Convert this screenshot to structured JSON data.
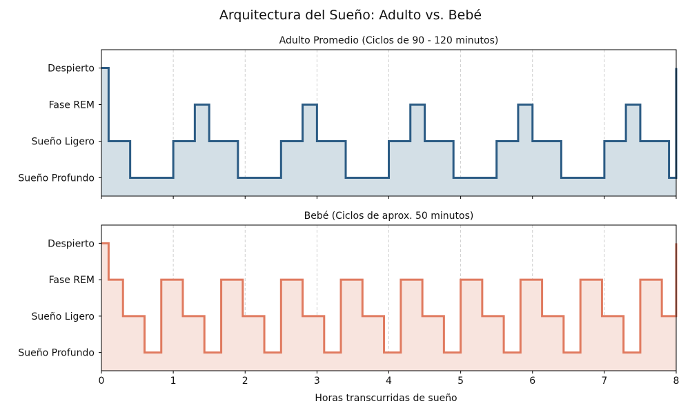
{
  "title": "Arquitectura del Sueño: Adulto vs. Bebé",
  "chart_data": [
    {
      "type": "line",
      "step": "post",
      "filled": true,
      "title": "Adulto Promedio (Ciclos de 90 - 120 minutos)",
      "xlabel": "",
      "ylabel": "",
      "xlim": [
        0,
        8
      ],
      "ylim": [
        -0.5,
        3.5
      ],
      "xticks": [
        0,
        1,
        2,
        3,
        4,
        5,
        6,
        7,
        8
      ],
      "show_xtick_labels": false,
      "yticks": [
        0,
        1,
        2,
        3
      ],
      "ytick_labels": [
        "Sueño Profundo",
        "Sueño Ligero",
        "Fase REM",
        "Despierto"
      ],
      "grid": "x dashed",
      "color": "#2b5b84",
      "fill_color": "#d3dfe6",
      "x": [
        0,
        0.1,
        0.4,
        1.0,
        1.3,
        1.5,
        1.9,
        2.5,
        2.8,
        3.0,
        3.4,
        4.0,
        4.3,
        4.5,
        4.9,
        5.5,
        5.8,
        6.0,
        6.4,
        7.0,
        7.3,
        7.5,
        7.9,
        8.0
      ],
      "y": [
        3,
        1,
        0,
        1,
        2,
        1,
        0,
        1,
        2,
        1,
        0,
        1,
        2,
        1,
        0,
        1,
        2,
        1,
        0,
        1,
        2,
        1,
        0,
        3
      ]
    },
    {
      "type": "line",
      "step": "post",
      "filled": true,
      "title": "Bebé (Ciclos de aprox. 50 minutos)",
      "xlabel": "Horas transcurridas de sueño",
      "ylabel": "",
      "xlim": [
        0,
        8
      ],
      "ylim": [
        -0.5,
        3.5
      ],
      "xticks": [
        0,
        1,
        2,
        3,
        4,
        5,
        6,
        7,
        8
      ],
      "xtick_labels": [
        "0",
        "1",
        "2",
        "3",
        "4",
        "5",
        "6",
        "7",
        "8"
      ],
      "show_xtick_labels": true,
      "yticks": [
        0,
        1,
        2,
        3
      ],
      "ytick_labels": [
        "Sueño Profundo",
        "Sueño Ligero",
        "Fase REM",
        "Despierto"
      ],
      "grid": "x dashed",
      "color": "#e07a5f",
      "fill_color": "#f8e4de",
      "x": [
        0,
        0.1,
        0.3,
        0.6,
        0.833,
        1.133,
        1.433,
        1.667,
        1.967,
        2.267,
        2.5,
        2.8,
        3.1,
        3.333,
        3.633,
        3.933,
        4.167,
        4.467,
        4.767,
        5.0,
        5.3,
        5.6,
        5.833,
        6.133,
        6.433,
        6.667,
        6.967,
        7.267,
        7.5,
        7.8,
        8.0
      ],
      "y": [
        3,
        2,
        1,
        0,
        2,
        1,
        0,
        2,
        1,
        0,
        2,
        1,
        0,
        2,
        1,
        0,
        2,
        1,
        0,
        2,
        1,
        0,
        2,
        1,
        0,
        2,
        1,
        0,
        2,
        1,
        3
      ]
    }
  ]
}
